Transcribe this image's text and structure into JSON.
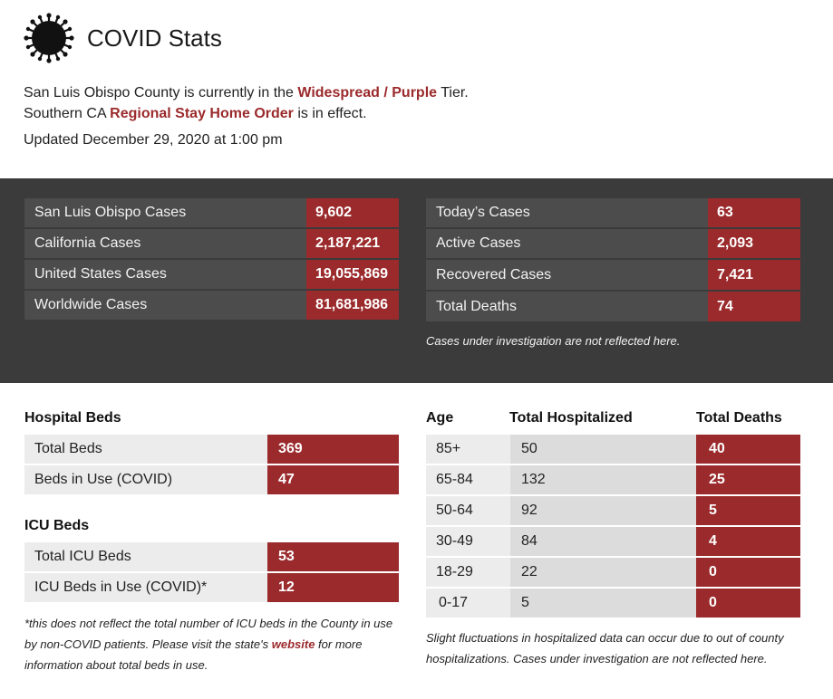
{
  "header": {
    "title": "COVID Stats",
    "icon": "virus-icon"
  },
  "intro": {
    "line1_prefix": "San Luis Obispo County is currently in the ",
    "tier": "Widespread / Purple",
    "line1_suffix": " Tier.",
    "line2_prefix": "Southern CA ",
    "order": "Regional Stay Home Order",
    "line2_suffix": " is in effect.",
    "updated": "Updated December 29, 2020 at 1:00 pm"
  },
  "cases_left": [
    {
      "label": "San Luis Obispo Cases",
      "value": "9,602"
    },
    {
      "label": "California Cases",
      "value": "2,187,221"
    },
    {
      "label": "United States Cases",
      "value": "19,055,869"
    },
    {
      "label": "Worldwide Cases",
      "value": "81,681,986"
    }
  ],
  "cases_right": [
    {
      "label": "Today’s Cases",
      "value": "63"
    },
    {
      "label": "Active Cases",
      "value": "2,093"
    },
    {
      "label": "Recovered Cases",
      "value": "7,421"
    },
    {
      "label": "Total Deaths",
      "value": "74"
    }
  ],
  "cases_note": "Cases under investigation are not reflected here.",
  "hospital_beds": {
    "title": "Hospital Beds",
    "rows": [
      {
        "label": "Total Beds",
        "value": "369"
      },
      {
        "label": "Beds in Use (COVID)",
        "value": "47"
      }
    ]
  },
  "icu_beds": {
    "title": "ICU Beds",
    "rows": [
      {
        "label": "Total ICU Beds",
        "value": "53"
      },
      {
        "label": "ICU Beds in Use (COVID)*",
        "value": "12"
      }
    ]
  },
  "footnote": {
    "prefix": "*this does not reflect the total number of ICU beds in the County in use by non-COVID patients.  Please visit the state's ",
    "link": "website",
    "suffix": " for more information about total beds in use."
  },
  "age_table": {
    "headers": {
      "age": "Age",
      "hospitalized": "Total Hospitalized",
      "deaths": "Total Deaths"
    },
    "rows": [
      {
        "age": "85+",
        "hospitalized": "50",
        "deaths": "40"
      },
      {
        "age": "65-84",
        "hospitalized": "132",
        "deaths": "25"
      },
      {
        "age": "50-64",
        "hospitalized": "92",
        "deaths": "5"
      },
      {
        "age": "30-49",
        "hospitalized": "84",
        "deaths": "4"
      },
      {
        "age": "18-29",
        "hospitalized": "22",
        "deaths": "0"
      },
      {
        "age": "0-17",
        "hospitalized": "5",
        "deaths": "0"
      }
    ],
    "note": "Slight fluctuations in hospitalized data can occur due to out of county hospitalizations.  Cases under investigation are not reflected here."
  },
  "colors": {
    "accent": "#9b2a2c",
    "dark_band": "#3b3b3b",
    "dark_cell": "#4c4c4c",
    "light_cell": "#ececec"
  }
}
